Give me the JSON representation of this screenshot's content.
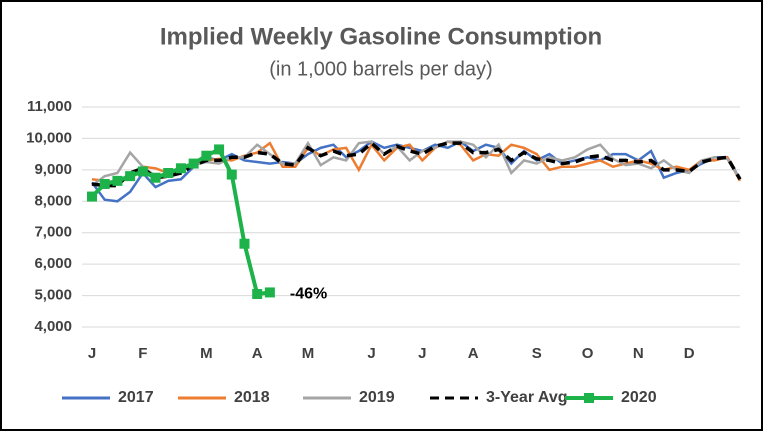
{
  "chart_data": {
    "type": "line",
    "title": "Implied Weekly Gasoline Consumption",
    "subtitle": "(in 1,000 barrels per day)",
    "annotation": "-46%",
    "categories": [
      "J",
      null,
      null,
      null,
      "F",
      null,
      null,
      null,
      null,
      "M",
      null,
      null,
      null,
      "A",
      null,
      null,
      null,
      "M",
      null,
      null,
      null,
      null,
      "J",
      null,
      null,
      null,
      "J",
      null,
      null,
      null,
      "A",
      null,
      null,
      null,
      null,
      "S",
      null,
      null,
      null,
      "O",
      null,
      null,
      null,
      "N",
      null,
      null,
      null,
      "D",
      null,
      null,
      null,
      null
    ],
    "ylim": [
      4000,
      11000
    ],
    "yticks": [
      {
        "value": 4000,
        "label": "4,000"
      },
      {
        "value": 5000,
        "label": "5,000"
      },
      {
        "value": 6000,
        "label": "6,000"
      },
      {
        "value": 7000,
        "label": "7,000"
      },
      {
        "value": 8000,
        "label": "8,000"
      },
      {
        "value": 9000,
        "label": "9,000"
      },
      {
        "value": 10000,
        "label": "10,000"
      },
      {
        "value": 11000,
        "label": "11,000"
      }
    ],
    "grid": true,
    "legend": "bottom",
    "series": [
      {
        "name": "2017",
        "color": "#4472c4",
        "values": [
          8600,
          8050,
          8000,
          8300,
          8900,
          8450,
          8650,
          8700,
          9100,
          9400,
          9300,
          9500,
          9300,
          9250,
          9200,
          9250,
          9200,
          9500,
          9700,
          9800,
          9400,
          9600,
          9900,
          9700,
          9800,
          9700,
          9600,
          9800,
          9700,
          9900,
          9600,
          9800,
          9700,
          9200,
          9600,
          9300,
          9500,
          9200,
          9300,
          9400,
          9300,
          9500,
          9500,
          9300,
          9600,
          8750,
          8900,
          9000,
          9200,
          9400,
          9400,
          8700
        ]
      },
      {
        "name": "2018",
        "color": "#ed7d31",
        "values": [
          8700,
          8650,
          8600,
          8800,
          9100,
          9050,
          8900,
          9050,
          9200,
          9300,
          9350,
          9300,
          9450,
          9550,
          9850,
          9100,
          9100,
          9700,
          9450,
          9650,
          9700,
          9000,
          9800,
          9300,
          9700,
          9800,
          9300,
          9700,
          9900,
          9800,
          9300,
          9500,
          9450,
          9800,
          9700,
          9500,
          9000,
          9100,
          9100,
          9200,
          9300,
          9100,
          9200,
          9300,
          9200,
          9000,
          9100,
          9000,
          9300,
          9300,
          9400,
          8650
        ]
      },
      {
        "name": "2019",
        "color": "#a5a5a5",
        "values": [
          8500,
          8800,
          8900,
          9550,
          9100,
          8800,
          8850,
          9000,
          9150,
          9250,
          9200,
          9400,
          9400,
          9800,
          9500,
          9200,
          9200,
          9850,
          9150,
          9400,
          9300,
          9850,
          9900,
          9500,
          9750,
          9300,
          9600,
          9700,
          9900,
          9900,
          9800,
          9400,
          9800,
          8900,
          9300,
          9200,
          9400,
          9300,
          9400,
          9650,
          9800,
          9350,
          9150,
          9200,
          9050,
          9300,
          9000,
          8900,
          9300,
          9400,
          9350,
          8700
        ]
      },
      {
        "name": "3-Year Avg",
        "color": "#000000",
        "dashed": true,
        "values": [
          8550,
          8500,
          8500,
          8900,
          9050,
          8750,
          8800,
          8900,
          9150,
          9300,
          9300,
          9400,
          9400,
          9550,
          9500,
          9200,
          9150,
          9700,
          9450,
          9600,
          9450,
          9500,
          9850,
          9500,
          9750,
          9600,
          9500,
          9750,
          9850,
          9850,
          9550,
          9550,
          9650,
          9300,
          9550,
          9350,
          9300,
          9200,
          9250,
          9400,
          9450,
          9300,
          9300,
          9250,
          9300,
          9000,
          9000,
          8950,
          9250,
          9350,
          9400,
          8700
        ]
      },
      {
        "name": "2020",
        "color": "#1db34a",
        "markers": true,
        "values": [
          8150,
          8550,
          8650,
          8800,
          8950,
          8750,
          8900,
          9050,
          9200,
          9450,
          9650,
          8850,
          6650,
          5050,
          5100,
          null,
          null,
          null,
          null,
          null,
          null,
          null,
          null,
          null,
          null,
          null,
          null,
          null,
          null,
          null,
          null,
          null,
          null,
          null,
          null,
          null,
          null,
          null,
          null,
          null,
          null,
          null,
          null,
          null,
          null,
          null,
          null,
          null,
          null,
          null,
          null,
          null
        ]
      }
    ]
  }
}
